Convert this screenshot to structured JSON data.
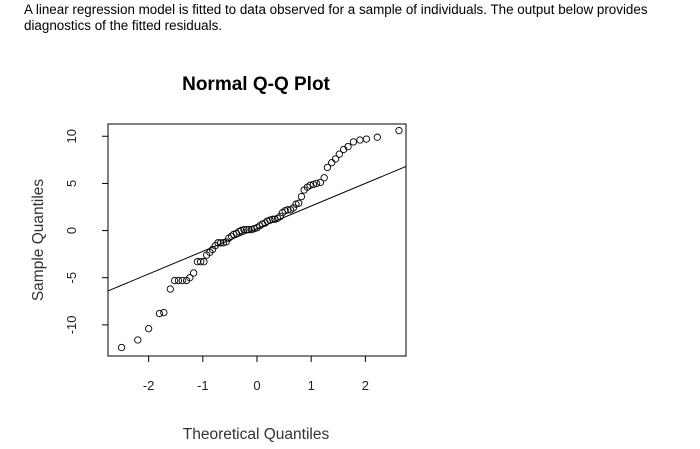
{
  "question": {
    "text": "A linear regression model is fitted to data observed for a sample of individuals. The output below provides diagnostics of the fitted residuals."
  },
  "chart_data": {
    "type": "scatter",
    "title": "Normal Q-Q Plot",
    "xlabel": "Theoretical Quantiles",
    "ylabel": "Sample Quantiles",
    "xlim": [
      -2.75,
      2.75
    ],
    "ylim": [
      -13.3,
      11.3
    ],
    "xticks": [
      -2,
      -1,
      0,
      1,
      2
    ],
    "xtick_labels": [
      "-2",
      "-1",
      "0",
      "1",
      "2"
    ],
    "yticks": [
      -10,
      -5,
      0,
      5,
      10
    ],
    "ytick_labels": [
      "-10",
      "-5",
      "0",
      "5",
      "10"
    ],
    "grid": false,
    "marker": "open-circle",
    "reference_line": {
      "from": [
        -2.75,
        -6.4
      ],
      "to": [
        2.75,
        6.8
      ]
    },
    "points": {
      "x": [
        -2.5,
        -2.2,
        -2.0,
        -1.8,
        -1.72,
        -1.6,
        -1.52,
        -1.45,
        -1.38,
        -1.3,
        -1.24,
        -1.17,
        -1.1,
        -1.04,
        -0.98,
        -0.93,
        -0.87,
        -0.82,
        -0.77,
        -0.72,
        -0.67,
        -0.62,
        -0.57,
        -0.52,
        -0.47,
        -0.43,
        -0.38,
        -0.33,
        -0.29,
        -0.24,
        -0.19,
        -0.15,
        -0.1,
        -0.05,
        0.0,
        0.05,
        0.1,
        0.15,
        0.19,
        0.24,
        0.29,
        0.33,
        0.38,
        0.43,
        0.47,
        0.52,
        0.57,
        0.62,
        0.67,
        0.72,
        0.77,
        0.82,
        0.87,
        0.93,
        0.98,
        1.04,
        1.1,
        1.17,
        1.24,
        1.3,
        1.38,
        1.45,
        1.52,
        1.6,
        1.68,
        1.78,
        1.9,
        2.02,
        2.22,
        2.62
      ],
      "y": [
        -12.4,
        -11.6,
        -10.4,
        -8.8,
        -8.7,
        -6.2,
        -5.3,
        -5.3,
        -5.3,
        -5.3,
        -5.0,
        -4.5,
        -3.3,
        -3.3,
        -3.3,
        -2.6,
        -2.3,
        -2.0,
        -1.6,
        -1.3,
        -1.3,
        -1.3,
        -1.2,
        -0.8,
        -0.6,
        -0.4,
        -0.3,
        -0.1,
        0.0,
        0.1,
        0.1,
        0.1,
        0.1,
        0.2,
        0.3,
        0.5,
        0.7,
        0.8,
        1.0,
        1.1,
        1.2,
        1.2,
        1.3,
        1.5,
        1.9,
        2.1,
        2.2,
        2.2,
        2.4,
        2.8,
        2.9,
        3.6,
        4.3,
        4.6,
        4.8,
        4.9,
        5.0,
        5.1,
        5.6,
        6.7,
        7.2,
        7.6,
        8.1,
        8.6,
        8.9,
        9.4,
        9.6,
        9.7,
        9.9,
        10.6
      ]
    }
  }
}
